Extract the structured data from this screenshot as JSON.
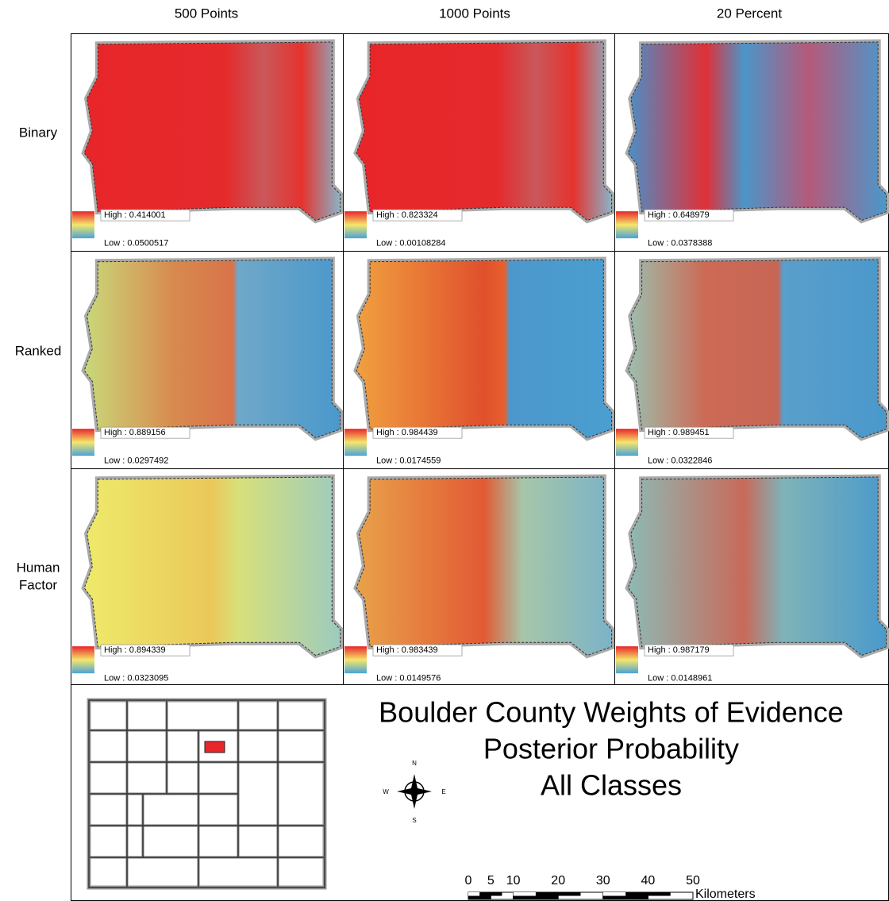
{
  "column_headers": [
    "500 Points",
    "1000 Points",
    "20 Percent"
  ],
  "row_labels": [
    [
      "Binary"
    ],
    [
      "Ranked"
    ],
    [
      "Human",
      "Factor"
    ]
  ],
  "panels": [
    [
      {
        "high": "High : 0.414001",
        "low": "Low : 0.0500517"
      },
      {
        "high": "High : 0.823324",
        "low": "Low : 0.00108284"
      },
      {
        "high": "High : 0.648979",
        "low": "Low : 0.0378388"
      }
    ],
    [
      {
        "high": "High : 0.889156",
        "low": "Low : 0.0297492"
      },
      {
        "high": "High : 0.984439",
        "low": "Low : 0.0174559"
      },
      {
        "high": "High : 0.989451",
        "low": "Low : 0.0322846"
      }
    ],
    [
      {
        "high": "High : 0.894339",
        "low": "Low : 0.0323095"
      },
      {
        "high": "High : 0.983439",
        "low": "Low : 0.0149576"
      },
      {
        "high": "High : 0.987179",
        "low": "Low : 0.0148961"
      }
    ]
  ],
  "title": [
    "Boulder County Weights of Evidence",
    "Posterior Probability",
    "All Classes"
  ],
  "compass": {
    "n": "N",
    "s": "S",
    "e": "E",
    "w": "W"
  },
  "scale_bar": {
    "ticks": [
      0,
      5,
      10,
      20,
      30,
      40,
      50
    ],
    "unit": "Kilometers"
  }
}
